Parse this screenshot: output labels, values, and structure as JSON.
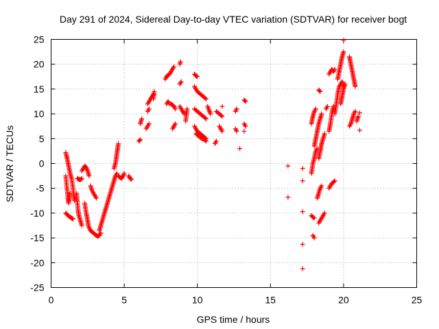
{
  "chart_data": {
    "type": "scatter",
    "title": "Day 291 of 2024, Sidereal Day-to-day VTEC variation (SDTVAR) for receiver bogt",
    "xlabel": "GPS time / hours",
    "ylabel": "SDTVAR / TECUs",
    "xlim": [
      0,
      25
    ],
    "ylim": [
      -25,
      25
    ],
    "xticks": [
      "0",
      "5",
      "10",
      "15",
      "20",
      "25"
    ],
    "yticks": [
      "-25",
      "-20",
      "-15",
      "-10",
      "-5",
      "0",
      "5",
      "10",
      "15",
      "20",
      "25"
    ],
    "grid": true,
    "marker": "+",
    "color": "#ff0000",
    "segments": [
      {
        "x": [
          1.0,
          1.1,
          1.2,
          1.3,
          1.4,
          1.5,
          1.55,
          1.6
        ],
        "y": [
          2.2,
          1.0,
          -0.5,
          -2.0,
          -3.0,
          -5.0,
          -6.5,
          -7.5
        ]
      },
      {
        "x": [
          1.0,
          1.05,
          1.1,
          1.15,
          1.2,
          1.3
        ],
        "y": [
          -2.5,
          -4.0,
          -5.5,
          -7.0,
          -8.0,
          -6.0
        ]
      },
      {
        "x": [
          1.0,
          1.1,
          1.2,
          1.3,
          1.4,
          1.5
        ],
        "y": [
          -10.0,
          -10.3,
          -10.6,
          -10.8,
          -11.0,
          -11.2
        ]
      },
      {
        "x": [
          1.75,
          1.8,
          1.85,
          1.9,
          1.95,
          2.0,
          2.05,
          2.1
        ],
        "y": [
          -6.0,
          -8.0,
          -9.5,
          -10.5,
          -11.0,
          -11.5,
          -12.0,
          -12.5
        ]
      },
      {
        "x": [
          1.8,
          1.9,
          2.0,
          2.1
        ],
        "y": [
          -3.0,
          -3.2,
          -3.3,
          -3.0
        ]
      },
      {
        "x": [
          2.1,
          2.2,
          2.3,
          2.4,
          2.5,
          2.6
        ],
        "y": [
          -1.5,
          -1.0,
          -0.5,
          -0.8,
          -1.5,
          -2.5
        ]
      },
      {
        "x": [
          2.3,
          2.4,
          2.5,
          2.55,
          2.6,
          2.7,
          2.8,
          2.9,
          3.0,
          3.1,
          3.2,
          3.3,
          3.4
        ],
        "y": [
          -8.0,
          -10.0,
          -11.5,
          -12.5,
          -13.0,
          -13.5,
          -13.8,
          -14.0,
          -14.3,
          -14.5,
          -14.7,
          -14.5,
          -14.0
        ]
      },
      {
        "x": [
          2.7,
          2.8,
          2.9,
          3.0,
          3.1
        ],
        "y": [
          -4.5,
          -5.5,
          -6.0,
          -6.5,
          -7.0
        ]
      },
      {
        "x": [
          3.3,
          3.4,
          3.5,
          3.6,
          3.7,
          3.8,
          3.9,
          4.0,
          4.1,
          4.2,
          4.3,
          4.4,
          4.5
        ],
        "y": [
          -13.5,
          -12.5,
          -11.5,
          -10.5,
          -9.5,
          -8.5,
          -7.5,
          -6.5,
          -5.5,
          -4.5,
          -3.5,
          -2.5,
          -2.0
        ]
      },
      {
        "x": [
          4.3,
          4.4,
          4.45,
          4.5,
          4.55,
          4.6
        ],
        "y": [
          -1.0,
          0.0,
          1.0,
          2.0,
          3.0,
          4.0
        ]
      },
      {
        "x": [
          4.6,
          4.7,
          4.8,
          4.9,
          5.0
        ],
        "y": [
          -2.5,
          -2.8,
          -3.0,
          -2.7,
          -2.0
        ]
      },
      {
        "x": [
          5.3,
          5.4,
          5.5
        ],
        "y": [
          -2.5,
          -3.0,
          -3.2
        ]
      },
      {
        "x": [
          6.0,
          6.1
        ],
        "y": [
          4.5,
          4.8
        ]
      },
      {
        "x": [
          6.1,
          6.2
        ],
        "y": [
          8.0,
          9.0
        ]
      },
      {
        "x": [
          6.5,
          6.6,
          6.7
        ],
        "y": [
          7.0,
          7.5,
          8.0
        ]
      },
      {
        "x": [
          6.6,
          6.7
        ],
        "y": [
          10.5,
          11.0
        ]
      },
      {
        "x": [
          6.6,
          6.7,
          6.8,
          6.9,
          7.0
        ],
        "y": [
          12.0,
          12.5,
          13.0,
          13.5,
          14.0
        ]
      },
      {
        "x": [
          7.0,
          7.05
        ],
        "y": [
          13.0,
          14.5
        ]
      },
      {
        "x": [
          7.8,
          7.9,
          8.0,
          8.1,
          8.2,
          8.3,
          8.4
        ],
        "y": [
          17.0,
          17.5,
          17.8,
          18.0,
          18.5,
          19.0,
          19.5
        ]
      },
      {
        "x": [
          7.9,
          8.0,
          8.1
        ],
        "y": [
          12.0,
          12.5,
          12.0
        ]
      },
      {
        "x": [
          8.2,
          8.3,
          8.4,
          8.5
        ],
        "y": [
          12.0,
          11.8,
          11.5,
          11.0
        ]
      },
      {
        "x": [
          8.3,
          8.4,
          8.5
        ],
        "y": [
          7.0,
          7.5,
          8.0
        ]
      },
      {
        "x": [
          8.8,
          8.85
        ],
        "y": [
          20.0,
          20.5
        ]
      },
      {
        "x": [
          8.8,
          8.9
        ],
        "y": [
          16.0,
          16.5
        ]
      },
      {
        "x": [
          8.8,
          8.9,
          9.0,
          9.1
        ],
        "y": [
          11.5,
          11.0,
          10.5,
          10.0
        ]
      },
      {
        "x": [
          9.3,
          9.2
        ],
        "y": [
          11.0,
          8.5
        ]
      },
      {
        "x": [
          9.8,
          9.9,
          10.0
        ],
        "y": [
          18.0,
          17.7,
          17.5
        ]
      },
      {
        "x": [
          9.8,
          9.9,
          10.0,
          10.2,
          10.4,
          10.6
        ],
        "y": [
          15.5,
          15.0,
          14.5,
          14.0,
          13.5,
          13.0
        ]
      },
      {
        "x": [
          9.8,
          10.0,
          10.2,
          10.4,
          10.6
        ],
        "y": [
          11.0,
          10.5,
          10.0,
          9.5,
          9.0
        ]
      },
      {
        "x": [
          9.8,
          10.0,
          10.2,
          10.4,
          10.6
        ],
        "y": [
          7.5,
          6.5,
          6.0,
          5.5,
          5.0
        ]
      },
      {
        "x": [
          9.9,
          10.1,
          10.3,
          10.5,
          10.6
        ],
        "y": [
          6.0,
          5.5,
          5.0,
          4.8,
          4.5
        ]
      },
      {
        "x": [
          10.7,
          10.9
        ],
        "y": [
          11.5,
          10.0
        ]
      },
      {
        "x": [
          11.2,
          11.3
        ],
        "y": [
          4.0,
          4.5
        ]
      },
      {
        "x": [
          11.3,
          11.5,
          11.7
        ],
        "y": [
          10.5,
          10.0,
          9.5
        ]
      },
      {
        "x": [
          11.5,
          11.6,
          11.7
        ],
        "y": [
          7.5,
          7.0,
          6.5
        ]
      },
      {
        "x": [
          11.7
        ],
        "y": [
          11.5
        ]
      },
      {
        "x": [
          12.6,
          12.7
        ],
        "y": [
          10.5,
          11.0
        ]
      },
      {
        "x": [
          12.6,
          12.7
        ],
        "y": [
          7.0,
          6.5
        ]
      },
      {
        "x": [
          12.9
        ],
        "y": [
          3.0
        ]
      },
      {
        "x": [
          13.2,
          13.3
        ],
        "y": [
          12.8,
          12.5
        ]
      },
      {
        "x": [
          13.2,
          13.3
        ],
        "y": [
          8.0,
          7.5
        ]
      },
      {
        "x": [
          13.2
        ],
        "y": [
          6.5
        ]
      },
      {
        "x": [
          16.2
        ],
        "y": [
          -0.5
        ]
      },
      {
        "x": [
          16.2
        ],
        "y": [
          -6.8
        ]
      },
      {
        "x": [
          17.2
        ],
        "y": [
          -1.0
        ]
      },
      {
        "x": [
          17.2
        ],
        "y": [
          -3.5
        ]
      },
      {
        "x": [
          17.2
        ],
        "y": [
          -9.7
        ]
      },
      {
        "x": [
          17.2
        ],
        "y": [
          -16.3
        ]
      },
      {
        "x": [
          17.2
        ],
        "y": [
          -21.2
        ]
      },
      {
        "x": [
          17.8,
          17.9,
          18.0
        ],
        "y": [
          -10.5,
          -10.8,
          -11.0
        ]
      },
      {
        "x": [
          17.9,
          18.0
        ],
        "y": [
          -14.5,
          -15.0
        ]
      },
      {
        "x": [
          17.8,
          17.9,
          18.0,
          18.1,
          18.2
        ],
        "y": [
          -2.0,
          0.0,
          1.0,
          2.5,
          3.0
        ]
      },
      {
        "x": [
          17.8,
          17.9,
          18.0,
          18.1
        ],
        "y": [
          8.0,
          9.5,
          10.5,
          11.0
        ]
      },
      {
        "x": [
          18.0,
          18.1,
          18.2,
          18.3,
          18.4,
          18.5
        ],
        "y": [
          3.5,
          5.0,
          6.5,
          8.0,
          9.0,
          10.0
        ]
      },
      {
        "x": [
          18.2,
          18.3,
          18.4,
          18.5
        ],
        "y": [
          -7.0,
          -6.0,
          -5.0,
          -4.5
        ]
      },
      {
        "x": [
          18.3,
          18.4,
          18.5,
          18.6,
          18.7
        ],
        "y": [
          -12.0,
          -11.5,
          -11.0,
          -10.5,
          -10.0
        ]
      },
      {
        "x": [
          18.3,
          18.4,
          18.5,
          18.6,
          18.7
        ],
        "y": [
          1.0,
          2.5,
          4.0,
          5.0,
          6.0
        ]
      },
      {
        "x": [
          18.3,
          18.4
        ],
        "y": [
          14.8,
          14.5
        ]
      },
      {
        "x": [
          18.8,
          18.9
        ],
        "y": [
          11.0,
          11.5
        ]
      },
      {
        "x": [
          19.0,
          19.1,
          19.2,
          19.3,
          19.4
        ],
        "y": [
          -5.0,
          -4.5,
          -4.0,
          -3.8,
          -3.5
        ]
      },
      {
        "x": [
          19.0,
          19.1,
          19.2,
          19.3
        ],
        "y": [
          6.5,
          8.0,
          10.0,
          11.5
        ]
      },
      {
        "x": [
          19.0,
          19.1,
          19.2,
          19.3,
          19.4
        ],
        "y": [
          18.0,
          18.5,
          19.0,
          18.5,
          19.0
        ]
      },
      {
        "x": [
          19.4,
          19.5,
          19.6,
          19.7,
          19.8,
          19.9,
          20.0
        ],
        "y": [
          10.0,
          12.0,
          14.0,
          15.5,
          16.0,
          16.5,
          15.5
        ]
      },
      {
        "x": [
          19.6,
          19.7,
          19.8,
          19.9,
          20.0
        ],
        "y": [
          17.0,
          18.5,
          20.0,
          21.5,
          22.5
        ]
      },
      {
        "x": [
          19.8,
          19.9,
          20.0,
          20.1
        ],
        "y": [
          12.0,
          13.5,
          15.0,
          16.0
        ]
      },
      {
        "x": [
          20.0
        ],
        "y": [
          24.8
        ]
      },
      {
        "x": [
          20.4,
          20.5,
          20.6,
          20.7,
          20.8
        ],
        "y": [
          21.5,
          20.0,
          18.5,
          17.0,
          15.5
        ]
      },
      {
        "x": [
          20.4,
          20.5,
          20.6,
          20.7,
          20.8
        ],
        "y": [
          7.5,
          8.0,
          9.0,
          10.0,
          10.5
        ]
      },
      {
        "x": [
          20.9,
          21.0
        ],
        "y": [
          8.5,
          9.5
        ]
      },
      {
        "x": [
          21.1
        ],
        "y": [
          10.2
        ]
      },
      {
        "x": [
          21.1
        ],
        "y": [
          6.7
        ]
      }
    ]
  }
}
